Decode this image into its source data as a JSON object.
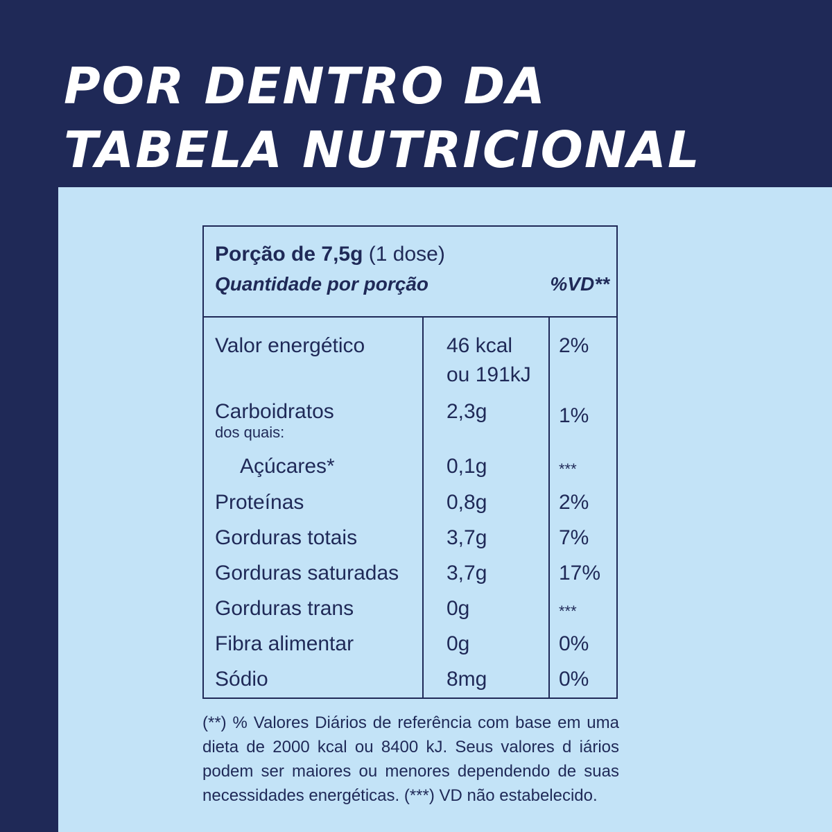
{
  "headline": {
    "line1": "POR DENTRO DA",
    "line2": "TABELA NUTRICIONAL"
  },
  "table": {
    "portion_label": "Porção de 7,5g",
    "portion_dose": "(1 dose)",
    "quantity_header": "Quantidade por porção",
    "vd_header": "%VD**",
    "rows": [
      {
        "name": "Valor energético",
        "qty": "46 kcal",
        "qty2": "ou 191kJ",
        "vd": "2%"
      },
      {
        "name": "Carboidratos",
        "sub": "dos quais:",
        "qty": "2,3g",
        "vd": "1%"
      },
      {
        "name": "Açúcares*",
        "qty": "0,1g",
        "vd": "***"
      },
      {
        "name": "Proteínas",
        "qty": "0,8g",
        "vd": "2%"
      },
      {
        "name": "Gorduras totais",
        "qty": "3,7g",
        "vd": "7%"
      },
      {
        "name": "Gorduras saturadas",
        "qty": "3,7g",
        "vd": "17%"
      },
      {
        "name": "Gorduras trans",
        "qty": "0g",
        "vd": "***"
      },
      {
        "name": "Fibra alimentar",
        "qty": "0g",
        "vd": "0%"
      },
      {
        "name": "Sódio",
        "qty": "8mg",
        "vd": "0%"
      }
    ]
  },
  "footnote": "(**) % Valores Diários de referência com base em uma dieta de 2000 kcal ou 8400 kJ. Seus valores d iários podem ser maiores ou menores dependendo de suas necessidades energéticas. (***) VD não estabelecido.",
  "colors": {
    "navy": "#1f2957",
    "light_blue": "#c3e3f7",
    "white": "#ffffff"
  }
}
